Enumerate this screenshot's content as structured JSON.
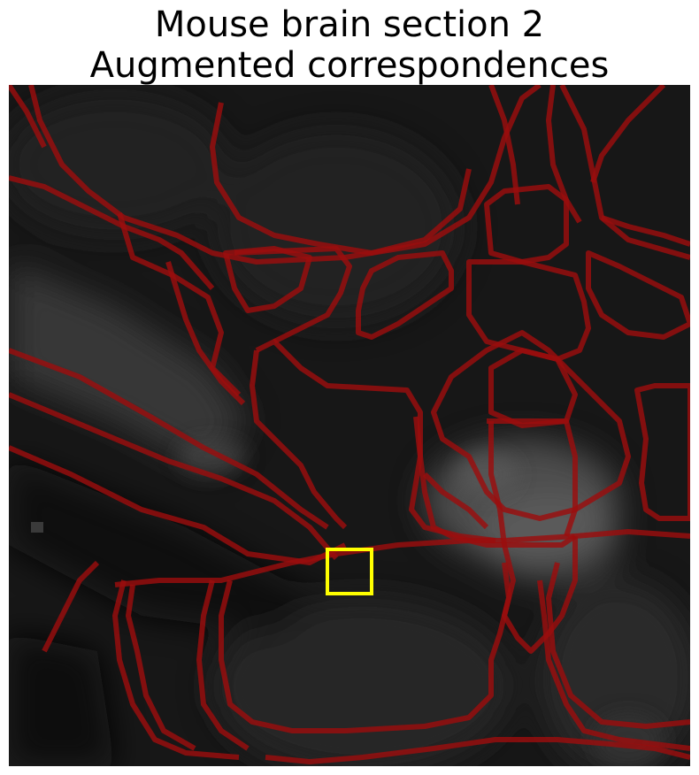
{
  "figure": {
    "title_line1": "Mouse brain section 2",
    "title_line2": "Augmented correspondences"
  },
  "image": {
    "content": "grayscale mouse brain tissue section with red region outlines",
    "contour_color": "#9b0e0e",
    "highlight_box_color": "#ffff00"
  }
}
